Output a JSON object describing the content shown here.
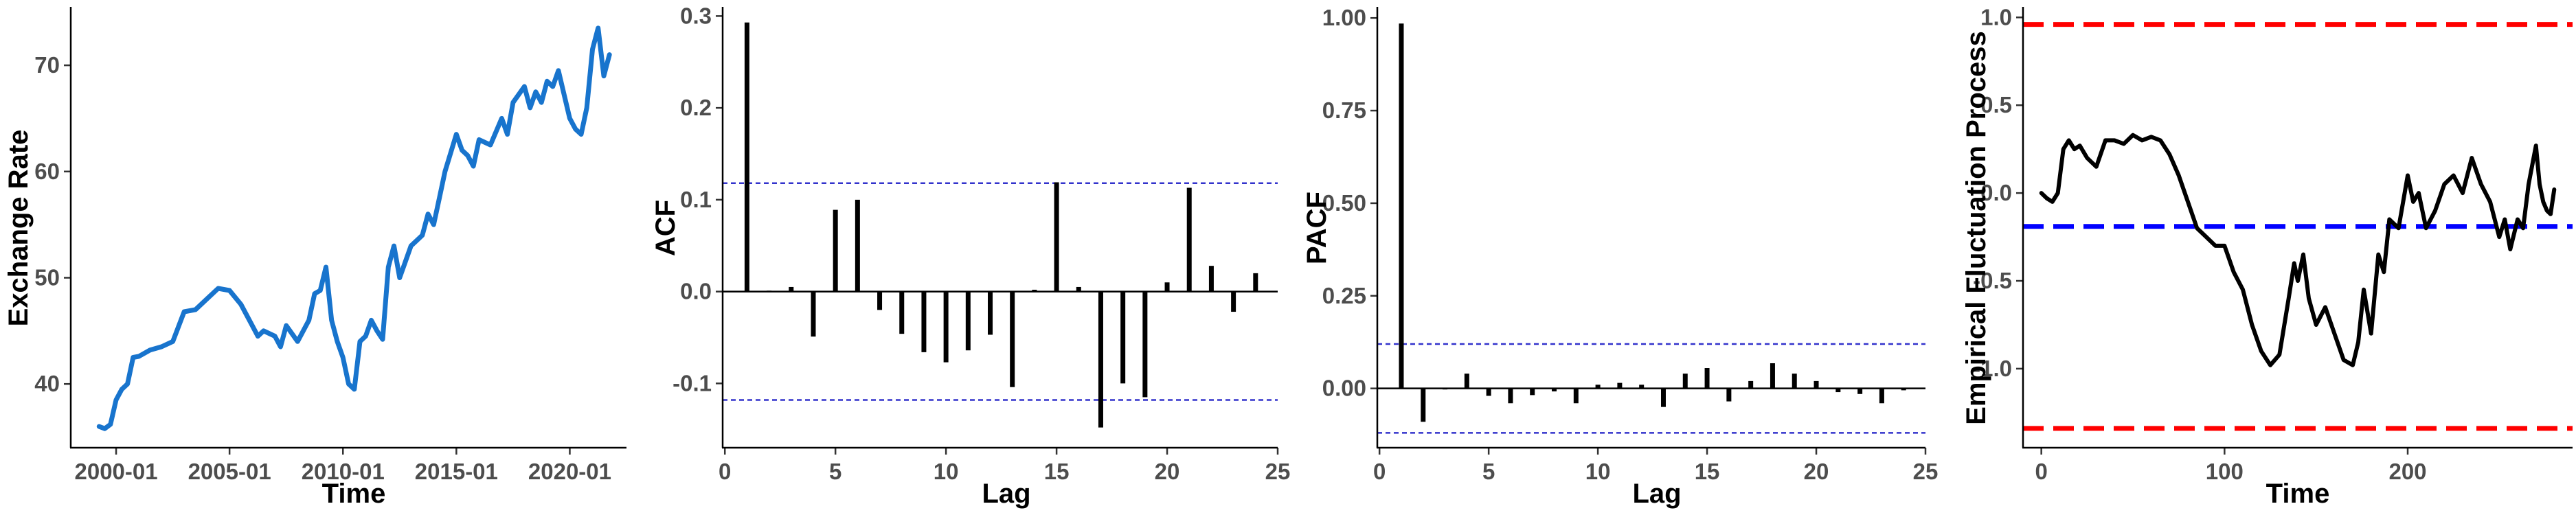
{
  "chart_data": [
    {
      "type": "line",
      "xlabel": "Time",
      "ylabel": "Exchange Rate",
      "x_tick_labels": [
        "2000-01",
        "2005-01",
        "2010-01",
        "2015-01",
        "2020-01"
      ],
      "x_tick_values": [
        2000.0,
        2005.0,
        2010.0,
        2015.0,
        2020.0
      ],
      "y_ticks": [
        40,
        50,
        60,
        70
      ],
      "xlim": [
        1998.0,
        2022.5
      ],
      "ylim": [
        34.0,
        75.5
      ],
      "grid": false,
      "legend": "none",
      "color": "#1874CD",
      "series": [
        {
          "x": [
            1999.25,
            1999.5,
            1999.75,
            2000.0,
            2000.25,
            2000.5,
            2000.75,
            2001.0,
            2001.5,
            2002.0,
            2002.5,
            2003.0,
            2003.5,
            2004.0,
            2004.5,
            2005.0,
            2005.5,
            2006.0,
            2006.25,
            2006.5,
            2007.0,
            2007.25,
            2007.5,
            2008.0,
            2008.5,
            2008.75,
            2009.0,
            2009.25,
            2009.5,
            2009.75,
            2010.0,
            2010.25,
            2010.5,
            2010.75,
            2011.0,
            2011.25,
            2011.5,
            2011.75,
            2012.0,
            2012.25,
            2012.5,
            2013.0,
            2013.25,
            2013.5,
            2013.75,
            2014.0,
            2014.25,
            2014.5,
            2015.0,
            2015.25,
            2015.5,
            2015.75,
            2016.0,
            2016.5,
            2017.0,
            2017.25,
            2017.5,
            2018.0,
            2018.25,
            2018.5,
            2018.75,
            2019.0,
            2019.25,
            2019.5,
            2020.0,
            2020.25,
            2020.5,
            2020.75,
            2021.0,
            2021.25,
            2021.5,
            2021.75
          ],
          "y": [
            36.0,
            35.8,
            36.2,
            38.5,
            39.5,
            40.0,
            42.5,
            42.6,
            43.2,
            43.5,
            44.0,
            46.8,
            47.0,
            48.0,
            49.0,
            48.8,
            47.5,
            45.5,
            44.5,
            45.0,
            44.5,
            43.5,
            45.5,
            44.0,
            46.0,
            48.5,
            48.8,
            51.0,
            46.0,
            44.0,
            42.5,
            40.0,
            39.5,
            44.0,
            44.5,
            46.0,
            45.0,
            44.2,
            51.0,
            53.0,
            50.0,
            53.0,
            53.5,
            54.0,
            56.0,
            55.0,
            57.5,
            60.0,
            63.5,
            62.0,
            61.5,
            60.5,
            63.0,
            62.5,
            65.0,
            63.5,
            66.5,
            68.0,
            66.0,
            67.5,
            66.5,
            68.5,
            68.0,
            69.5,
            65.0,
            64.0,
            63.5,
            66.0,
            71.5,
            73.5,
            69.0,
            71.0
          ]
        }
      ]
    },
    {
      "type": "bar",
      "xlabel": "Lag",
      "ylabel": "ACF",
      "x_ticks": [
        0,
        5,
        10,
        15,
        20,
        25
      ],
      "y_ticks": [
        -0.1,
        0.0,
        0.1,
        0.2,
        0.3
      ],
      "xlim": [
        -0.1,
        25.0
      ],
      "ylim": [
        -0.17,
        0.31
      ],
      "confidence_bound": 0.118,
      "grid": false,
      "legend": "none",
      "lags": [
        1,
        2,
        3,
        4,
        5,
        6,
        7,
        8,
        9,
        10,
        11,
        12,
        13,
        14,
        15,
        16,
        17,
        18,
        19,
        20,
        21,
        22,
        23,
        24
      ],
      "values": [
        0.293,
        0.001,
        0.005,
        -0.049,
        0.089,
        0.1,
        -0.02,
        -0.046,
        -0.066,
        -0.077,
        -0.064,
        -0.047,
        -0.104,
        0.002,
        0.119,
        0.005,
        -0.148,
        -0.1,
        -0.115,
        0.01,
        0.113,
        0.028,
        -0.022,
        0.02
      ]
    },
    {
      "type": "bar",
      "xlabel": "Lag",
      "ylabel": "PACF",
      "x_ticks": [
        0,
        5,
        10,
        15,
        20,
        25
      ],
      "y_ticks": [
        0.0,
        0.25,
        0.5,
        0.75,
        1.0
      ],
      "xlim": [
        -0.1,
        25.0
      ],
      "ylim": [
        -0.16,
        1.03
      ],
      "confidence_bound": 0.12,
      "grid": false,
      "legend": "none",
      "lags": [
        1,
        2,
        3,
        4,
        5,
        6,
        7,
        8,
        9,
        10,
        11,
        12,
        13,
        14,
        15,
        16,
        17,
        18,
        19,
        20,
        21,
        22,
        23,
        24
      ],
      "values": [
        0.985,
        -0.09,
        0.0,
        0.04,
        -0.02,
        -0.04,
        -0.018,
        -0.008,
        -0.04,
        0.01,
        0.015,
        0.01,
        -0.05,
        0.04,
        0.055,
        -0.035,
        0.02,
        0.068,
        0.04,
        0.02,
        -0.01,
        -0.015,
        -0.04,
        -0.005
      ]
    },
    {
      "type": "line",
      "xlabel": "Time",
      "ylabel": "Empirical Fluctuation Process",
      "x_ticks": [
        0,
        100,
        200
      ],
      "y_ticks": [
        -1.0,
        -0.5,
        0.0,
        0.5,
        1.0
      ],
      "xlim": [
        -10,
        290
      ],
      "ylim": [
        -1.45,
        1.06
      ],
      "grid": false,
      "legend": "none",
      "reference_lines": [
        {
          "y": 0.96,
          "color": "#FF0000"
        },
        {
          "y": -0.19,
          "color": "#0000FF"
        },
        {
          "y": -1.34,
          "color": "#FF0000"
        }
      ],
      "series": [
        {
          "x": [
            0,
            3,
            6,
            9,
            12,
            15,
            18,
            21,
            25,
            30,
            35,
            40,
            45,
            50,
            55,
            60,
            65,
            70,
            75,
            80,
            85,
            90,
            95,
            100,
            105,
            110,
            115,
            120,
            125,
            130,
            135,
            138,
            140,
            143,
            146,
            150,
            155,
            160,
            165,
            170,
            173,
            176,
            180,
            184,
            187,
            190,
            195,
            200,
            203,
            206,
            210,
            215,
            220,
            225,
            230,
            235,
            240,
            245,
            250,
            253,
            256,
            260,
            263,
            266,
            270,
            272,
            274,
            276,
            278,
            280
          ],
          "y": [
            0.0,
            -0.03,
            -0.05,
            0.0,
            0.25,
            0.3,
            0.25,
            0.27,
            0.2,
            0.15,
            0.3,
            0.3,
            0.28,
            0.33,
            0.3,
            0.32,
            0.3,
            0.22,
            0.1,
            -0.05,
            -0.2,
            -0.25,
            -0.3,
            -0.3,
            -0.45,
            -0.55,
            -0.75,
            -0.9,
            -0.98,
            -0.92,
            -0.6,
            -0.4,
            -0.5,
            -0.35,
            -0.6,
            -0.75,
            -0.65,
            -0.8,
            -0.95,
            -0.98,
            -0.85,
            -0.55,
            -0.8,
            -0.35,
            -0.45,
            -0.15,
            -0.2,
            0.1,
            -0.05,
            0.0,
            -0.2,
            -0.1,
            0.05,
            0.1,
            0.0,
            0.2,
            0.05,
            -0.05,
            -0.25,
            -0.15,
            -0.32,
            -0.15,
            -0.2,
            0.05,
            0.27,
            0.05,
            -0.05,
            -0.1,
            -0.12,
            0.02
          ]
        }
      ]
    }
  ]
}
